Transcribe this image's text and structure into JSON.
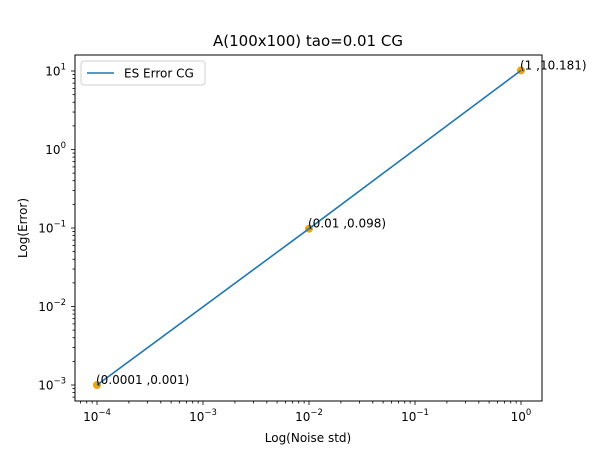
{
  "chart_data": {
    "type": "line",
    "title": "A(100x100) tao=0.01 CG",
    "xlabel": "Log(Noise std)",
    "ylabel": "Log(Error)",
    "xscale": "log",
    "yscale": "log",
    "xlim": [
      6e-05,
      1.6
    ],
    "ylim": [
      0.0007,
      15
    ],
    "grid": false,
    "legend_position": "upper left",
    "x_ticks": [
      {
        "base": "10",
        "exp": "−4"
      },
      {
        "base": "10",
        "exp": "−3"
      },
      {
        "base": "10",
        "exp": "−2"
      },
      {
        "base": "10",
        "exp": "−1"
      },
      {
        "base": "10",
        "exp": "0"
      }
    ],
    "y_ticks": [
      {
        "base": "10",
        "exp": "1"
      },
      {
        "base": "10",
        "exp": "0"
      },
      {
        "base": "10",
        "exp": "−1"
      },
      {
        "base": "10",
        "exp": "−2"
      },
      {
        "base": "10",
        "exp": "−3"
      }
    ],
    "series": [
      {
        "name": "ES Error CG",
        "color": "#1f77b4",
        "x": [
          0.0001,
          0.01,
          1
        ],
        "y": [
          0.001,
          0.098,
          10.181
        ]
      }
    ],
    "markers": {
      "color": "#f0a30a",
      "points": [
        {
          "x": 0.0001,
          "y": 0.001,
          "label": "(0.0001 ,0.001)"
        },
        {
          "x": 0.01,
          "y": 0.098,
          "label": "(0.01 ,0.098)"
        },
        {
          "x": 1,
          "y": 10.181,
          "label": "(1 ,10.181)"
        }
      ]
    }
  }
}
